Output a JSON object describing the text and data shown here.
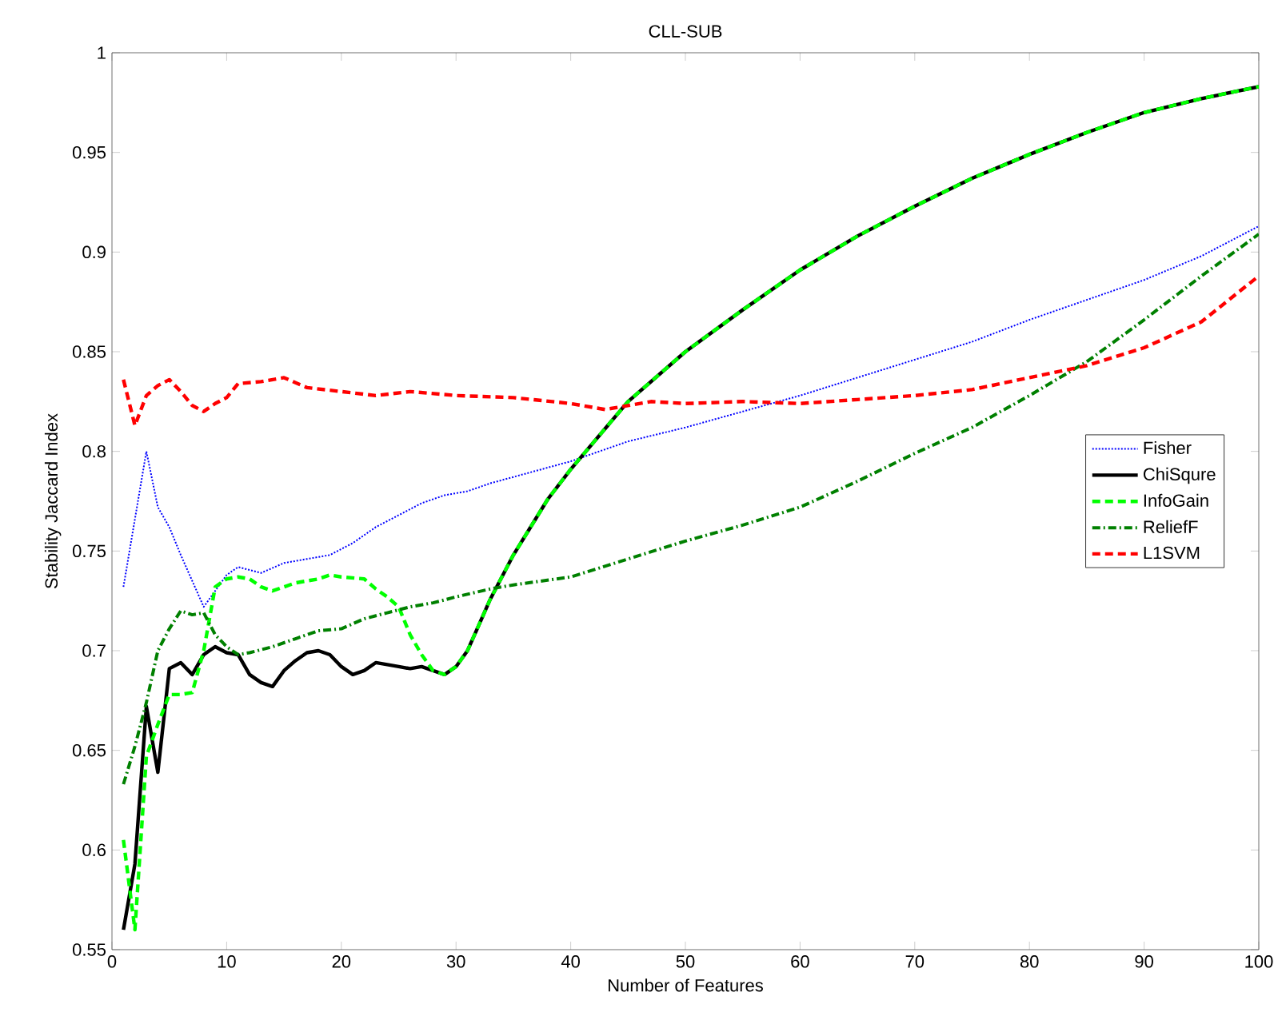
{
  "chart_data": {
    "type": "line",
    "title": "CLL-SUB",
    "xlabel": "Number of Features",
    "ylabel": "Stability Jaccard Index",
    "xlim": [
      0,
      100
    ],
    "ylim": [
      0.55,
      1
    ],
    "xticks": [
      0,
      10,
      20,
      30,
      40,
      50,
      60,
      70,
      80,
      90,
      100
    ],
    "yticks": [
      0.55,
      0.6,
      0.65,
      0.7,
      0.75,
      0.8,
      0.85,
      0.9,
      0.95,
      1
    ],
    "legend": "right",
    "marker": "none",
    "series": [
      {
        "name": "Fisher",
        "color": "#0000ff",
        "line_style": "dotted",
        "x": [
          1,
          3,
          4,
          5,
          6,
          7,
          8,
          10,
          11,
          13,
          15,
          17,
          19,
          21,
          23,
          25,
          27,
          29,
          31,
          33,
          40,
          45,
          50,
          55,
          60,
          65,
          70,
          75,
          80,
          85,
          90,
          95,
          100
        ],
        "values": [
          0.732,
          0.8,
          0.772,
          0.762,
          0.748,
          0.735,
          0.722,
          0.738,
          0.742,
          0.739,
          0.744,
          0.746,
          0.748,
          0.754,
          0.762,
          0.768,
          0.774,
          0.778,
          0.78,
          0.784,
          0.795,
          0.805,
          0.812,
          0.82,
          0.828,
          0.837,
          0.846,
          0.855,
          0.866,
          0.876,
          0.886,
          0.898,
          0.913
        ]
      },
      {
        "name": "ChiSqure",
        "color": "#000000",
        "line_style": "solid",
        "x": [
          1,
          2,
          3,
          4,
          5,
          6,
          7,
          8,
          9,
          10,
          11,
          12,
          13,
          14,
          15,
          16,
          17,
          18,
          19,
          20,
          21,
          22,
          23,
          25,
          26,
          27,
          28,
          29,
          30,
          31,
          32,
          33,
          35,
          38,
          40,
          45,
          50,
          55,
          60,
          65,
          70,
          75,
          80,
          85,
          90,
          95,
          100
        ],
        "values": [
          0.56,
          0.593,
          0.672,
          0.639,
          0.691,
          0.694,
          0.688,
          0.698,
          0.702,
          0.699,
          0.698,
          0.688,
          0.684,
          0.682,
          0.69,
          0.695,
          0.699,
          0.7,
          0.698,
          0.692,
          0.688,
          0.69,
          0.694,
          0.692,
          0.691,
          0.692,
          0.69,
          0.688,
          0.692,
          0.7,
          0.713,
          0.726,
          0.748,
          0.776,
          0.791,
          0.825,
          0.85,
          0.871,
          0.891,
          0.908,
          0.923,
          0.937,
          0.949,
          0.96,
          0.97,
          0.977,
          0.983
        ]
      },
      {
        "name": "InfoGain",
        "color": "#00ff00",
        "line_style": "dashed",
        "x": [
          1,
          2,
          3,
          4,
          5,
          6,
          7,
          8,
          9,
          10,
          11,
          12,
          13,
          14,
          15,
          16,
          17,
          18,
          19,
          20,
          22,
          23,
          24,
          25,
          26,
          27,
          28,
          29,
          30,
          31,
          32,
          33,
          35,
          38,
          40,
          45,
          50,
          55,
          60,
          65,
          70,
          75,
          80,
          85,
          90,
          95,
          100
        ],
        "values": [
          0.605,
          0.56,
          0.647,
          0.663,
          0.678,
          0.678,
          0.679,
          0.7,
          0.732,
          0.736,
          0.737,
          0.736,
          0.732,
          0.73,
          0.732,
          0.734,
          0.735,
          0.736,
          0.738,
          0.737,
          0.736,
          0.731,
          0.727,
          0.722,
          0.708,
          0.698,
          0.69,
          0.688,
          0.692,
          0.7,
          0.713,
          0.726,
          0.748,
          0.776,
          0.791,
          0.825,
          0.85,
          0.871,
          0.891,
          0.908,
          0.923,
          0.937,
          0.949,
          0.96,
          0.97,
          0.977,
          0.983
        ]
      },
      {
        "name": "ReliefF",
        "color": "#008000",
        "line_style": "dashdot",
        "x": [
          1,
          2,
          3,
          4,
          5,
          6,
          7,
          8,
          9,
          10,
          11,
          12,
          14,
          16,
          18,
          20,
          22,
          24,
          26,
          28,
          30,
          33,
          35,
          40,
          45,
          50,
          55,
          60,
          65,
          70,
          75,
          80,
          85,
          90,
          95,
          100
        ],
        "values": [
          0.633,
          0.652,
          0.674,
          0.7,
          0.711,
          0.72,
          0.718,
          0.719,
          0.708,
          0.702,
          0.698,
          0.699,
          0.702,
          0.706,
          0.71,
          0.711,
          0.716,
          0.719,
          0.722,
          0.724,
          0.727,
          0.731,
          0.733,
          0.737,
          0.746,
          0.755,
          0.763,
          0.772,
          0.785,
          0.799,
          0.812,
          0.828,
          0.845,
          0.866,
          0.888,
          0.909
        ]
      },
      {
        "name": "L1SVM",
        "color": "#ff0000",
        "line_style": "dashed",
        "x": [
          1,
          2,
          3,
          4,
          5,
          6,
          7,
          8,
          9,
          10,
          11,
          13,
          15,
          17,
          20,
          23,
          26,
          30,
          35,
          40,
          43,
          47,
          50,
          55,
          60,
          65,
          70,
          75,
          80,
          85,
          90,
          95,
          100
        ],
        "values": [
          0.836,
          0.813,
          0.828,
          0.833,
          0.836,
          0.83,
          0.823,
          0.82,
          0.824,
          0.827,
          0.834,
          0.835,
          0.837,
          0.832,
          0.83,
          0.828,
          0.83,
          0.828,
          0.827,
          0.824,
          0.821,
          0.825,
          0.824,
          0.825,
          0.824,
          0.826,
          0.828,
          0.831,
          0.837,
          0.843,
          0.852,
          0.865,
          0.888
        ]
      }
    ]
  }
}
